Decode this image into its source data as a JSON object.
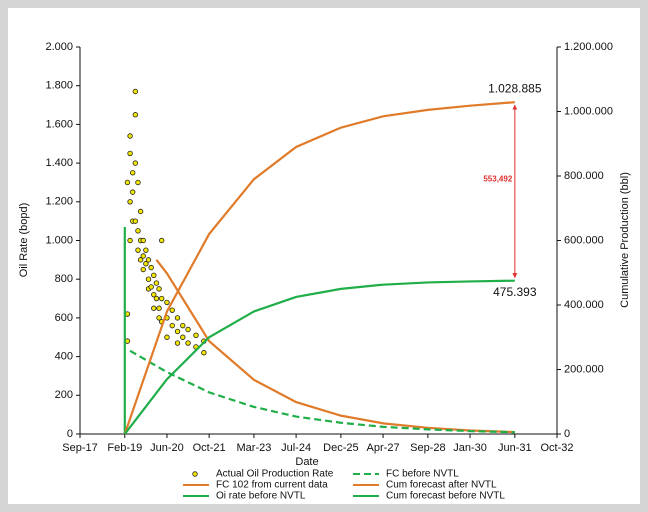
{
  "chart_data": {
    "type": "line",
    "xlabel": "Date",
    "ylabel": "Oil Rate (bopd)",
    "y2label": "Cumulative Production (bbl)",
    "xlim": [
      "2017-09",
      "2032-10"
    ],
    "xticks": [
      {
        "value": "2017-09",
        "label": "Sep-17"
      },
      {
        "value": "2019-02",
        "label": "Feb-19"
      },
      {
        "value": "2020-06",
        "label": "Jun-20"
      },
      {
        "value": "2021-10",
        "label": "Oct-21"
      },
      {
        "value": "2023-03",
        "label": "Mar-23"
      },
      {
        "value": "2024-07",
        "label": "Jul-24"
      },
      {
        "value": "2025-12",
        "label": "Dec-25"
      },
      {
        "value": "2027-04",
        "label": "Apr-27"
      },
      {
        "value": "2028-09",
        "label": "Sep-28"
      },
      {
        "value": "2030-01",
        "label": "Jan-30"
      },
      {
        "value": "2031-06",
        "label": "Jun-31"
      },
      {
        "value": "2032-10",
        "label": "Oct-32"
      }
    ],
    "ylim": [
      0,
      2000
    ],
    "yticks": [
      0,
      {
        "value": 200,
        "label": "200"
      },
      {
        "value": 400,
        "label": "400"
      },
      {
        "value": 600,
        "label": "600"
      },
      {
        "value": 800,
        "label": "800"
      },
      {
        "value": 1000,
        "label": "1.000"
      },
      {
        "value": 1200,
        "label": "1.200"
      },
      {
        "value": 1400,
        "label": "1.400"
      },
      {
        "value": 1600,
        "label": "1.600"
      },
      {
        "value": 1800,
        "label": "1.800"
      },
      {
        "value": 2000,
        "label": "2.000"
      }
    ],
    "y2lim": [
      0,
      1200000
    ],
    "y2ticks": [
      0,
      {
        "value": 200000,
        "label": "200.000"
      },
      {
        "value": 400000,
        "label": "400.000"
      },
      {
        "value": 600000,
        "label": "600.000"
      },
      {
        "value": 800000,
        "label": "800.000"
      },
      {
        "value": 1000000,
        "label": "1.000.000"
      },
      {
        "value": 1200000,
        "label": "1.200.000"
      }
    ],
    "series": [
      {
        "name": "Actual Oil Production Rate",
        "kind": "scatter",
        "color": "#f2e600",
        "x": [
          "2019-03",
          "2019-03",
          "2019-03",
          "2019-04",
          "2019-04",
          "2019-04",
          "2019-04",
          "2019-05",
          "2019-05",
          "2019-05",
          "2019-06",
          "2019-06",
          "2019-06",
          "2019-06",
          "2019-07",
          "2019-07",
          "2019-07",
          "2019-08",
          "2019-08",
          "2019-08",
          "2019-09",
          "2019-09",
          "2019-09",
          "2019-10",
          "2019-10",
          "2019-11",
          "2019-11",
          "2019-11",
          "2019-12",
          "2019-12",
          "2020-01",
          "2020-01",
          "2020-01",
          "2020-02",
          "2020-02",
          "2020-03",
          "2020-03",
          "2020-03",
          "2020-04",
          "2020-04",
          "2020-04",
          "2020-06",
          "2020-06",
          "2020-06",
          "2020-08",
          "2020-08",
          "2020-10",
          "2020-10",
          "2020-10",
          "2020-12",
          "2020-12",
          "2021-02",
          "2021-02",
          "2021-05",
          "2021-05",
          "2021-08",
          "2021-08"
        ],
        "values": [
          480,
          620,
          1300,
          1450,
          1540,
          1200,
          1000,
          1350,
          1250,
          1100,
          1770,
          1650,
          1400,
          1100,
          1300,
          1050,
          950,
          1150,
          1000,
          900,
          1000,
          920,
          850,
          950,
          880,
          900,
          800,
          750,
          860,
          760,
          820,
          720,
          650,
          780,
          700,
          750,
          650,
          600,
          1000,
          700,
          580,
          680,
          600,
          500,
          640,
          560,
          600,
          530,
          470,
          560,
          500,
          540,
          470,
          510,
          450,
          480,
          420
        ]
      },
      {
        "name": "FC 102 from current data",
        "color": "#e07b2a",
        "dash": false,
        "x": [
          "2020-02",
          "2020-06",
          "2021-10",
          "2023-03",
          "2024-07",
          "2025-12",
          "2027-04",
          "2028-09",
          "2030-01",
          "2031-06"
        ],
        "values": [
          900,
          830,
          480,
          280,
          165,
          95,
          55,
          32,
          18,
          10
        ]
      },
      {
        "name": "Oi rate before NVTL",
        "color": "#1fae48",
        "dash": false,
        "x": [
          "2019-02",
          "2019-02"
        ],
        "values": [
          0,
          1070
        ]
      },
      {
        "name": "FC before NVTL",
        "color": "#1fae48",
        "dash": true,
        "x": [
          "2019-04",
          "2020-06",
          "2021-10",
          "2023-03",
          "2024-07",
          "2025-12",
          "2027-04",
          "2028-09",
          "2030-01",
          "2031-06"
        ],
        "values": [
          430,
          320,
          215,
          140,
          90,
          58,
          37,
          24,
          15,
          9
        ]
      },
      {
        "name": "Cum forecast after NVTL",
        "color": "#e07b2a",
        "dash": false,
        "axis": "y2",
        "x": [
          "2019-02",
          "2020-06",
          "2021-10",
          "2023-03",
          "2024-07",
          "2025-12",
          "2027-04",
          "2028-09",
          "2030-01",
          "2031-06"
        ],
        "values": [
          0,
          380000,
          620000,
          790000,
          890000,
          950000,
          985000,
          1005000,
          1018000,
          1028885
        ]
      },
      {
        "name": "Cum forecast before NVTL",
        "color": "#1fae48",
        "dash": false,
        "axis": "y2",
        "x": [
          "2019-02",
          "2020-06",
          "2021-10",
          "2023-03",
          "2024-07",
          "2025-12",
          "2027-04",
          "2028-09",
          "2030-01",
          "2031-06"
        ],
        "values": [
          0,
          170000,
          300000,
          380000,
          425000,
          450000,
          463000,
          470000,
          473000,
          475393
        ]
      }
    ],
    "annotations": [
      "1.028.885",
      "475.393",
      "553,492"
    ]
  }
}
